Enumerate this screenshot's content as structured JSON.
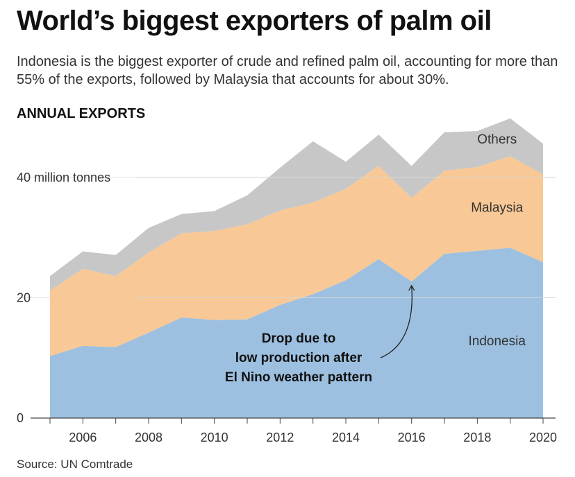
{
  "header": {
    "title": "World’s biggest exporters of palm oil",
    "subtitle": "Indonesia is the biggest exporter of crude and refined palm oil, accounting for more than 55% of the exports, followed by Malaysia that accounts for about 30%.",
    "section_label": "ANNUAL EXPORTS",
    "source": "Source: UN Comtrade"
  },
  "chart_data": {
    "type": "area",
    "stacked": true,
    "title": "ANNUAL EXPORTS",
    "x": [
      2005,
      2006,
      2007,
      2008,
      2009,
      2010,
      2011,
      2012,
      2013,
      2014,
      2015,
      2016,
      2017,
      2018,
      2019,
      2020
    ],
    "series": [
      {
        "name": "Indonesia",
        "color": "#9dc0e0",
        "values": [
          10.3,
          12.0,
          11.8,
          14.2,
          16.7,
          16.3,
          16.4,
          18.8,
          20.6,
          22.9,
          26.4,
          22.7,
          27.3,
          27.8,
          28.3,
          25.9
        ]
      },
      {
        "name": "Malaysia",
        "color": "#f8c896",
        "values": [
          10.9,
          12.8,
          11.8,
          13.3,
          14.0,
          14.8,
          15.8,
          15.7,
          15.2,
          15.2,
          15.5,
          13.9,
          13.8,
          13.9,
          15.2,
          14.6
        ]
      },
      {
        "name": "Others",
        "color": "#c7c7c7",
        "values": [
          2.4,
          2.9,
          3.5,
          4.1,
          3.2,
          3.3,
          4.8,
          7.1,
          10.2,
          4.5,
          5.2,
          5.3,
          6.4,
          6.0,
          6.3,
          5.1
        ]
      }
    ],
    "yticks": [
      {
        "value": 0,
        "label": "0"
      },
      {
        "value": 20,
        "label": "20"
      },
      {
        "value": 40,
        "label": "40 million tonnes"
      }
    ],
    "xticks": [
      {
        "value": 2006,
        "label": "2006"
      },
      {
        "value": 2008,
        "label": "2008"
      },
      {
        "value": 2010,
        "label": "2010"
      },
      {
        "value": 2012,
        "label": "2012"
      },
      {
        "value": 2014,
        "label": "2014"
      },
      {
        "value": 2016,
        "label": "2016"
      },
      {
        "value": 2018,
        "label": "2018"
      },
      {
        "value": 2020,
        "label": "2020"
      }
    ],
    "ylim": [
      0,
      48
    ],
    "xlim": [
      2005,
      2020
    ],
    "grid": true,
    "annotation": {
      "lines": [
        "Drop due to",
        "low production after",
        "El Nino weather pattern"
      ],
      "x": 2016,
      "y": 22.7
    }
  }
}
